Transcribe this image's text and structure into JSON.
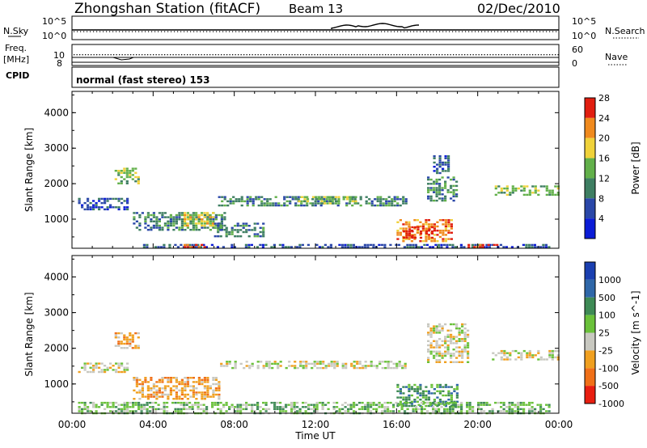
{
  "header": {
    "station": "Zhongshan Station (fitACF)",
    "beam": "Beam 13",
    "date": "02/Dec/2010"
  },
  "strips": {
    "nsky_label": "N.Sky",
    "nsearch_label": "N.Search",
    "freq_label_1": "Freq.",
    "freq_label_2": "[MHz]",
    "nave_label": "Nave",
    "cpid_label": "CPID",
    "cpid_value": "normal (fast stereo) 153",
    "noise_ticks": [
      "10^5",
      "10^0"
    ],
    "freq_ticks": [
      "10",
      "8"
    ],
    "nave_ticks": [
      "60",
      "0"
    ]
  },
  "chart_data": [
    {
      "type": "heatmap",
      "name": "power",
      "ylabel": "Slant Range [km]",
      "xlabel": "",
      "ylim": [
        180,
        4600
      ],
      "yticks": [
        "1000",
        "2000",
        "3000",
        "4000"
      ],
      "colorbar": {
        "label": "Power [dB]",
        "ticks": [
          "4",
          "8",
          "12",
          "16",
          "20",
          "24",
          "28"
        ],
        "colors": [
          "#0b1cd6",
          "#2a47a8",
          "#3e7e62",
          "#62b04a",
          "#f0d23a",
          "#f08a1e",
          "#e11e10"
        ]
      },
      "regions": [
        {
          "t0": 2.1,
          "t1": 3.3,
          "r0": 2000,
          "r1": 2450,
          "level": 3
        },
        {
          "t0": 0.3,
          "t1": 2.8,
          "r0": 1300,
          "r1": 1600,
          "level": 1
        },
        {
          "t0": 3.0,
          "t1": 7.5,
          "r0": 700,
          "r1": 1200,
          "level": 2
        },
        {
          "t0": 5.5,
          "t1": 7.0,
          "r0": 800,
          "r1": 1200,
          "level": 4
        },
        {
          "t0": 7.0,
          "t1": 9.5,
          "r0": 500,
          "r1": 900,
          "level": 2
        },
        {
          "t0": 7.2,
          "t1": 16.5,
          "r0": 1400,
          "r1": 1650,
          "level": 2
        },
        {
          "t0": 11.0,
          "t1": 14.0,
          "r0": 1450,
          "r1": 1650,
          "level": 3
        },
        {
          "t0": 16.0,
          "t1": 18.7,
          "r0": 400,
          "r1": 1000,
          "level": 5
        },
        {
          "t0": 16.3,
          "t1": 17.8,
          "r0": 500,
          "r1": 800,
          "level": 6
        },
        {
          "t0": 17.5,
          "t1": 19.0,
          "r0": 1500,
          "r1": 2200,
          "level": 2
        },
        {
          "t0": 17.8,
          "t1": 18.5,
          "r0": 2300,
          "r1": 2800,
          "level": 1
        },
        {
          "t0": 20.7,
          "t1": 24.0,
          "r0": 1700,
          "r1": 1950,
          "level": 3
        },
        {
          "t0": 3.5,
          "t1": 23.5,
          "r0": 200,
          "r1": 300,
          "level": 1
        },
        {
          "t0": 5.5,
          "t1": 6.5,
          "r0": 200,
          "r1": 300,
          "level": 6
        },
        {
          "t0": 19.5,
          "t1": 21.0,
          "r0": 200,
          "r1": 300,
          "level": 6
        }
      ]
    },
    {
      "type": "heatmap",
      "name": "velocity",
      "ylabel": "Slant Range [km]",
      "xlabel": "Time UT",
      "ylim": [
        180,
        4600
      ],
      "yticks": [
        "1000",
        "2000",
        "3000",
        "4000"
      ],
      "xticks": [
        "00:00",
        "04:00",
        "08:00",
        "12:00",
        "16:00",
        "20:00",
        "00:00"
      ],
      "colorbar": {
        "label": "Velocity [m s^-1]",
        "ticks": [
          "1000",
          "500",
          "100",
          "25",
          "-25",
          "-100",
          "-500",
          "-1000"
        ],
        "colors": [
          "#1a3fb0",
          "#2f67a8",
          "#3e8a55",
          "#6ac13a",
          "#c8c8c0",
          "#f0a020",
          "#f07018",
          "#e81e10"
        ]
      },
      "regions": [
        {
          "t0": 2.1,
          "t1": 3.3,
          "r0": 2000,
          "r1": 2450,
          "level": 5
        },
        {
          "t0": 0.3,
          "t1": 2.8,
          "r0": 1350,
          "r1": 1600,
          "level": 4
        },
        {
          "t0": 3.0,
          "t1": 7.3,
          "r0": 600,
          "r1": 1200,
          "level": 5
        },
        {
          "t0": 7.3,
          "t1": 16.5,
          "r0": 1450,
          "r1": 1650,
          "level": 4
        },
        {
          "t0": 16.0,
          "t1": 19.0,
          "r0": 400,
          "r1": 1000,
          "level": 2
        },
        {
          "t0": 17.5,
          "t1": 19.5,
          "r0": 1600,
          "r1": 2700,
          "level": 4
        },
        {
          "t0": 20.7,
          "t1": 24.0,
          "r0": 1700,
          "r1": 1950,
          "level": 4
        },
        {
          "t0": 0.3,
          "t1": 23.5,
          "r0": 200,
          "r1": 500,
          "level": 3
        }
      ]
    }
  ]
}
